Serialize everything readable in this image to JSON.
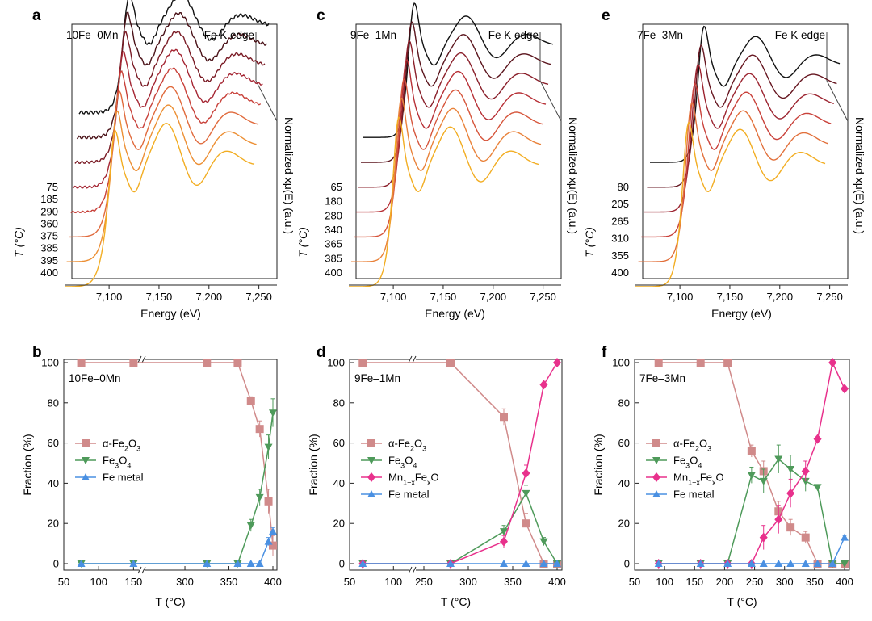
{
  "chart_data": [
    {
      "panel": "a",
      "type": "line",
      "sample": "10Fe–0Mn",
      "edge": "Fe K edge",
      "xlabel": "Energy (eV)",
      "ylabel": "Normalized xμ(E) (a.u.)",
      "zlabel": "T (°C)",
      "xlim": [
        7070,
        7260
      ],
      "xticks": [
        "7,100",
        "7,150",
        "7,200",
        "7,250"
      ],
      "temperatures": [
        "75",
        "185",
        "290",
        "360",
        "375",
        "385",
        "395",
        "400"
      ],
      "series_colors": [
        "#111111",
        "#4a1218",
        "#7a1b25",
        "#a52633",
        "#c8413a",
        "#e06a3c",
        "#ec8f34",
        "#f2ad22"
      ]
    },
    {
      "panel": "c",
      "type": "line",
      "sample": "9Fe–1Mn",
      "edge": "Fe K edge",
      "xlabel": "Energy (eV)",
      "ylabel": "Normalized xμ(E) (a.u.)",
      "zlabel": "T (°C)",
      "xlim": [
        7070,
        7260
      ],
      "xticks": [
        "7,100",
        "7,150",
        "7,200",
        "7,250"
      ],
      "temperatures": [
        "65",
        "180",
        "280",
        "340",
        "365",
        "385",
        "400"
      ],
      "series_colors": [
        "#111111",
        "#5a141c",
        "#8a1f2a",
        "#b73036",
        "#d6553b",
        "#e9823a",
        "#f2ad22"
      ]
    },
    {
      "panel": "e",
      "type": "line",
      "sample": "7Fe–3Mn",
      "edge": "Fe K edge",
      "xlabel": "Energy (eV)",
      "ylabel": "Normalized xμ(E) (a.u.)",
      "zlabel": "T (°C)",
      "xlim": [
        7070,
        7260
      ],
      "xticks": [
        "7,100",
        "7,150",
        "7,200",
        "7,250"
      ],
      "temperatures": [
        "80",
        "205",
        "265",
        "310",
        "355",
        "400"
      ],
      "series_colors": [
        "#111111",
        "#661620",
        "#9c2430",
        "#c9413a",
        "#e2703b",
        "#f2ad22"
      ]
    },
    {
      "panel": "b",
      "type": "line",
      "sample": "10Fe–0Mn",
      "xlabel": "T (°C)",
      "ylabel": "Fraction (%)",
      "ylim": [
        0,
        100
      ],
      "yticks": [
        "0",
        "20",
        "40",
        "60",
        "80",
        "100"
      ],
      "xticks": [
        "50",
        "100",
        "150",
        "300",
        "350",
        "400"
      ],
      "series": [
        {
          "name": "α-Fe₂O₃",
          "color": "#d08a8a",
          "marker": "square",
          "points": [
            [
              75,
              100
            ],
            [
              150,
              100
            ],
            [
              325,
              100
            ],
            [
              360,
              100
            ],
            [
              375,
              81
            ],
            [
              385,
              67
            ],
            [
              395,
              31
            ],
            [
              400,
              9
            ]
          ],
          "err": [
            0,
            0,
            0,
            0,
            2,
            4,
            6,
            5
          ]
        },
        {
          "name": "Fe₃O₄",
          "color": "#4e9a5a",
          "marker": "triangle-down",
          "points": [
            [
              75,
              0
            ],
            [
              150,
              0
            ],
            [
              325,
              0
            ],
            [
              360,
              0
            ],
            [
              375,
              19
            ],
            [
              385,
              33
            ],
            [
              395,
              58
            ],
            [
              400,
              75
            ]
          ],
          "err": [
            0,
            0,
            0,
            0,
            3,
            4,
            6,
            7
          ]
        },
        {
          "name": "Fe metal",
          "color": "#4a90e2",
          "marker": "triangle-up",
          "points": [
            [
              75,
              0
            ],
            [
              150,
              0
            ],
            [
              325,
              0
            ],
            [
              360,
              0
            ],
            [
              375,
              0
            ],
            [
              385,
              0
            ],
            [
              395,
              11
            ],
            [
              400,
              16
            ]
          ],
          "err": [
            0,
            0,
            0,
            0,
            0,
            0,
            2,
            2
          ]
        }
      ]
    },
    {
      "panel": "d",
      "type": "line",
      "sample": "9Fe–1Mn",
      "xlabel": "T (°C)",
      "ylabel": "Fraction (%)",
      "ylim": [
        0,
        100
      ],
      "yticks": [
        "0",
        "20",
        "40",
        "60",
        "80",
        "100"
      ],
      "xticks": [
        "50",
        "100",
        "250",
        "300",
        "350",
        "400"
      ],
      "series": [
        {
          "name": "α-Fe₂O₃",
          "color": "#d08a8a",
          "marker": "square",
          "points": [
            [
              65,
              100
            ],
            [
              280,
              100
            ],
            [
              340,
              73
            ],
            [
              365,
              20
            ],
            [
              385,
              0
            ],
            [
              400,
              0
            ]
          ],
          "err": [
            0,
            0,
            4,
            5,
            0,
            0
          ]
        },
        {
          "name": "Fe₃O₄",
          "color": "#4e9a5a",
          "marker": "triangle-down",
          "points": [
            [
              65,
              0
            ],
            [
              280,
              0
            ],
            [
              340,
              16
            ],
            [
              365,
              35
            ],
            [
              385,
              11
            ],
            [
              400,
              0
            ]
          ],
          "err": [
            0,
            0,
            3,
            4,
            2,
            0
          ]
        },
        {
          "name": "Mn₁₋ₓFeₓO",
          "color": "#e8318c",
          "marker": "diamond",
          "points": [
            [
              65,
              0
            ],
            [
              280,
              0
            ],
            [
              340,
              11
            ],
            [
              365,
              45
            ],
            [
              385,
              89
            ],
            [
              400,
              100
            ]
          ],
          "err": [
            0,
            0,
            3,
            4,
            0,
            0
          ]
        },
        {
          "name": "Fe metal",
          "color": "#4a90e2",
          "marker": "triangle-up",
          "points": [
            [
              65,
              0
            ],
            [
              280,
              0
            ],
            [
              340,
              0
            ],
            [
              365,
              0
            ],
            [
              385,
              0
            ],
            [
              400,
              0
            ]
          ],
          "err": [
            0,
            0,
            0,
            0,
            0,
            0
          ]
        }
      ]
    },
    {
      "panel": "f",
      "type": "line",
      "sample": "7Fe–3Mn",
      "xlabel": "T (°C)",
      "ylabel": "Fraction (%)",
      "xlim": [
        50,
        400
      ],
      "ylim": [
        0,
        100
      ],
      "xticks": [
        "50",
        "100",
        "150",
        "200",
        "250",
        "300",
        "350",
        "400"
      ],
      "yticks": [
        "0",
        "20",
        "40",
        "60",
        "80",
        "100"
      ],
      "series": [
        {
          "name": "α-Fe₂O₃",
          "color": "#d08a8a",
          "marker": "square",
          "points": [
            [
              90,
              100
            ],
            [
              160,
              100
            ],
            [
              205,
              100
            ],
            [
              245,
              56
            ],
            [
              265,
              46
            ],
            [
              290,
              26
            ],
            [
              310,
              18
            ],
            [
              335,
              13
            ],
            [
              355,
              0
            ],
            [
              380,
              0
            ],
            [
              400,
              0
            ]
          ],
          "err": [
            0,
            0,
            0,
            3,
            5,
            5,
            4,
            3,
            0,
            0,
            0
          ]
        },
        {
          "name": "Fe₃O₄",
          "color": "#4e9a5a",
          "marker": "triangle-down",
          "points": [
            [
              90,
              0
            ],
            [
              160,
              0
            ],
            [
              205,
              0
            ],
            [
              245,
              44
            ],
            [
              265,
              41
            ],
            [
              290,
              52
            ],
            [
              310,
              47
            ],
            [
              335,
              41
            ],
            [
              355,
              38
            ],
            [
              380,
              0
            ],
            [
              400,
              0
            ]
          ],
          "err": [
            0,
            0,
            0,
            4,
            6,
            7,
            7,
            5,
            0,
            0,
            0
          ]
        },
        {
          "name": "Mn₁₋ₓFeₓO",
          "color": "#e8318c",
          "marker": "diamond",
          "points": [
            [
              90,
              0
            ],
            [
              160,
              0
            ],
            [
              205,
              0
            ],
            [
              245,
              0
            ],
            [
              265,
              13
            ],
            [
              290,
              22
            ],
            [
              310,
              35
            ],
            [
              335,
              46
            ],
            [
              355,
              62
            ],
            [
              380,
              100
            ],
            [
              400,
              87
            ]
          ],
          "err": [
            0,
            0,
            0,
            0,
            6,
            7,
            7,
            5,
            0,
            0,
            0
          ]
        },
        {
          "name": "Fe metal",
          "color": "#4a90e2",
          "marker": "triangle-up",
          "points": [
            [
              90,
              0
            ],
            [
              160,
              0
            ],
            [
              205,
              0
            ],
            [
              245,
              0
            ],
            [
              265,
              0
            ],
            [
              290,
              0
            ],
            [
              310,
              0
            ],
            [
              335,
              0
            ],
            [
              355,
              0
            ],
            [
              380,
              0
            ],
            [
              400,
              13
            ]
          ],
          "err": [
            0,
            0,
            0,
            0,
            0,
            0,
            0,
            0,
            0,
            0,
            1
          ]
        }
      ]
    }
  ]
}
